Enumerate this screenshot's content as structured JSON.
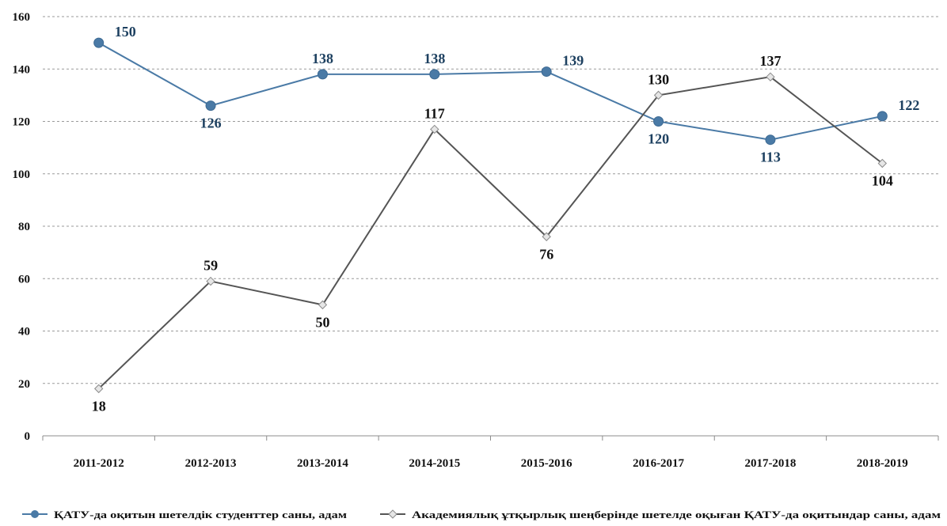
{
  "chart_data": {
    "type": "line",
    "categories": [
      "2011-2012",
      "2012-2013",
      "2013-2014",
      "2014-2015",
      "2015-2016",
      "2016-2017",
      "2017-2018",
      "2018-2019"
    ],
    "ylim": [
      0,
      160
    ],
    "yticks": [
      0,
      20,
      40,
      60,
      80,
      100,
      120,
      140,
      160
    ],
    "grid": true,
    "legend_position": "bottom",
    "series": [
      {
        "name": "ҚАТУ-да оқитын шетелдік студенттер саны, адам",
        "values": [
          150,
          126,
          138,
          138,
          139,
          120,
          113,
          122
        ],
        "color": "#4a7aa6",
        "marker": "circle",
        "data_labels": [
          "150",
          "126",
          "138",
          "138",
          "139",
          "120",
          "113",
          "122"
        ]
      },
      {
        "name": "Академиялық ұтқырлық шеңберінде шетелде оқыған ҚАТУ-да оқитындар саны, адам",
        "values": [
          18,
          59,
          50,
          117,
          76,
          130,
          137,
          104
        ],
        "color": "#555555",
        "marker": "diamond",
        "data_labels": [
          "18",
          "59",
          "50",
          "117",
          "76",
          "130",
          "137",
          "104"
        ]
      }
    ]
  }
}
